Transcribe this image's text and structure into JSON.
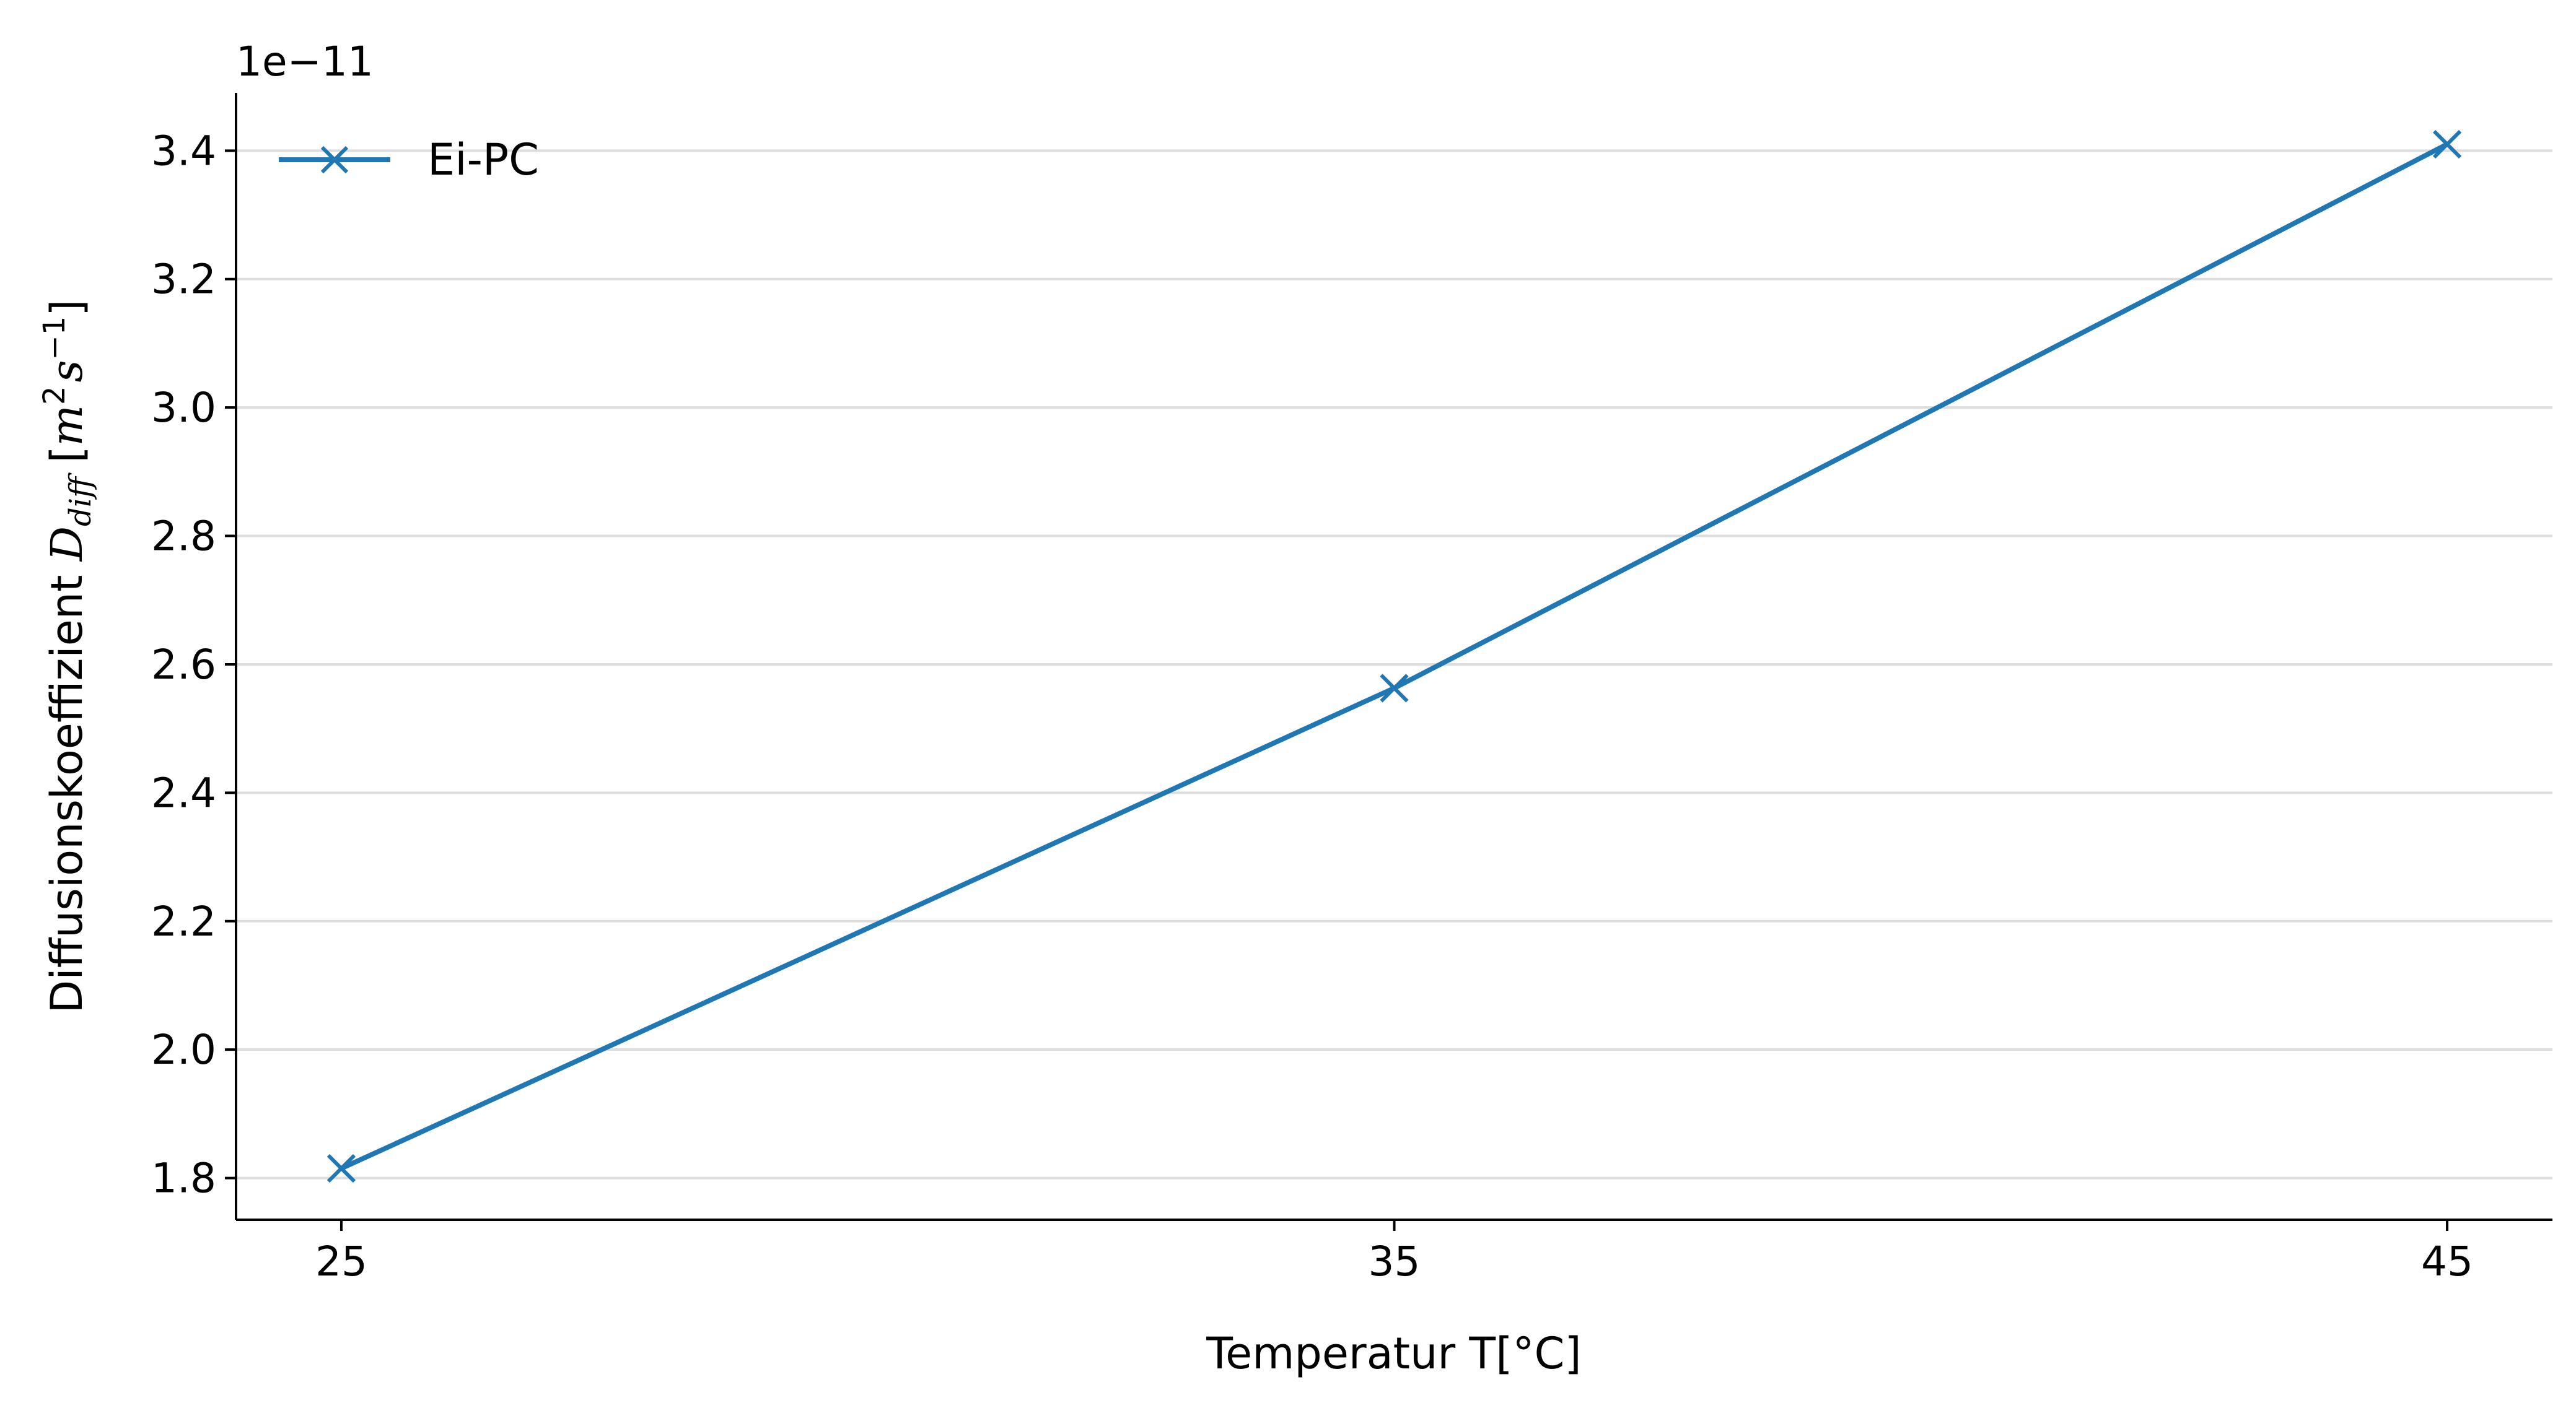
{
  "chart_data": {
    "type": "line",
    "title": "",
    "xlabel": "Temperatur T[°C]",
    "ylabel": {
      "prefix": "Diffusionskoeffizient ",
      "symbol": "D",
      "subscript": "diff",
      "open_bracket": " [",
      "unit_m": "m",
      "unit_m_exp": "2",
      "unit_s": "s",
      "unit_s_exp": "−1",
      "close_bracket": "]"
    },
    "y_offset_label": "1e−11",
    "x": [
      25,
      35,
      45
    ],
    "x_tick_labels": [
      "25",
      "35",
      "45"
    ],
    "xlim": [
      24,
      46.0
    ],
    "y_ticks": [
      1.8,
      2.0,
      2.2,
      2.4,
      2.6,
      2.8,
      3.0,
      3.2,
      3.4
    ],
    "y_tick_labels": [
      "1.8",
      "2.0",
      "2.2",
      "2.4",
      "2.6",
      "2.8",
      "3.0",
      "3.2",
      "3.4"
    ],
    "ylim": [
      1.735,
      3.49
    ],
    "grid": "y",
    "legend_position": "top-left",
    "series": [
      {
        "name": "Ei-PC",
        "color": "#1f77b4",
        "marker": "x",
        "values": [
          1.815,
          2.563,
          3.41
        ]
      }
    ]
  }
}
